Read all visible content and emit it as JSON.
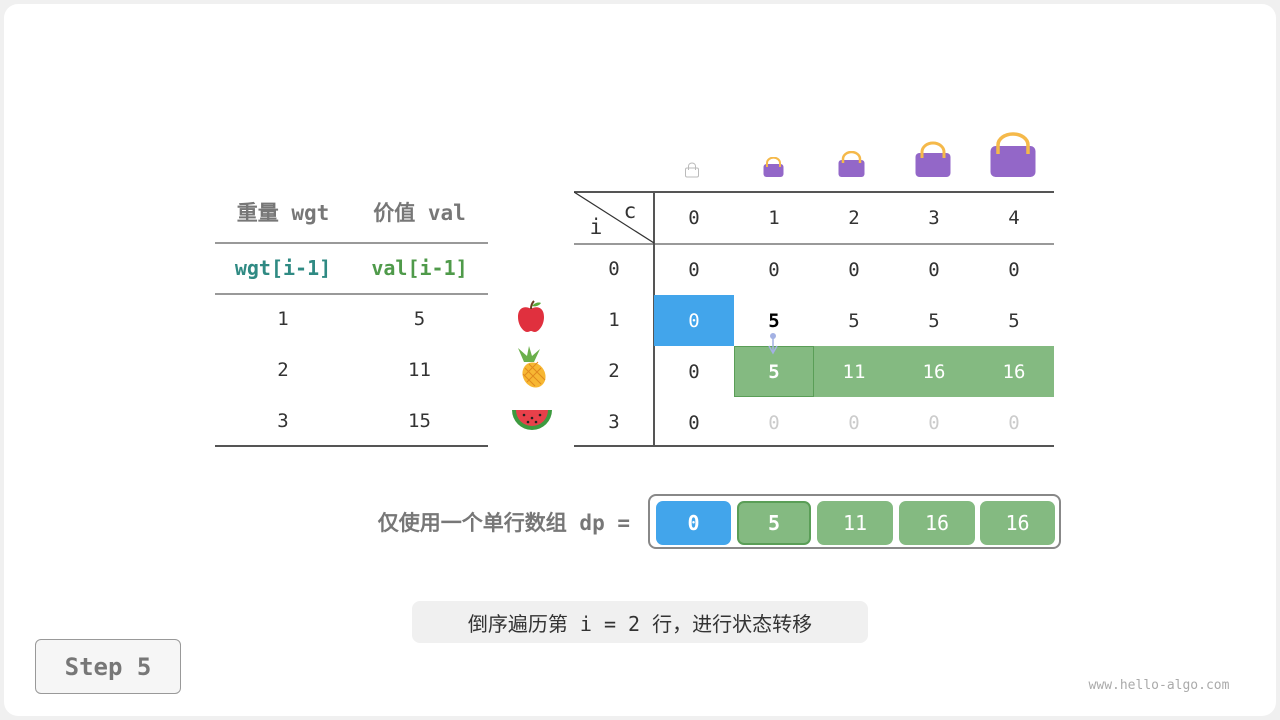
{
  "items_table": {
    "headers": [
      "重量 wgt",
      "价值 val"
    ],
    "subheaders": [
      "wgt[i-1]",
      "val[i-1]"
    ],
    "rows": [
      {
        "wgt": "1",
        "val": "5",
        "fruit": "apple-icon"
      },
      {
        "wgt": "2",
        "val": "11",
        "fruit": "pineapple-icon"
      },
      {
        "wgt": "3",
        "val": "15",
        "fruit": "watermelon-icon"
      }
    ]
  },
  "dp_table": {
    "corner_c": "c",
    "corner_i": "i",
    "col_headers": [
      "0",
      "1",
      "2",
      "3",
      "4"
    ],
    "row_headers": [
      "0",
      "1",
      "2",
      "3"
    ],
    "rows": [
      [
        "0",
        "0",
        "0",
        "0",
        "0"
      ],
      [
        "0",
        "5",
        "5",
        "5",
        "5"
      ],
      [
        "0",
        "5",
        "11",
        "16",
        "16"
      ],
      [
        "0",
        "0",
        "0",
        "0",
        "0"
      ]
    ]
  },
  "dp_array": {
    "label": "仅使用一个单行数组 dp =",
    "values": [
      "0",
      "5",
      "11",
      "16",
      "16"
    ]
  },
  "caption": "倒序遍历第 i = 2 行，进行状态转移",
  "step_button": "Step 5",
  "watermark": "www.hello-algo.com",
  "colors": {
    "blue": "#42a5eb",
    "green": "#84ba81",
    "green_border": "#5a9e57",
    "bag": "#9367c8",
    "handle": "#f5b94a",
    "teal": "#2f8a83",
    "val_green": "#4f9a4a"
  }
}
